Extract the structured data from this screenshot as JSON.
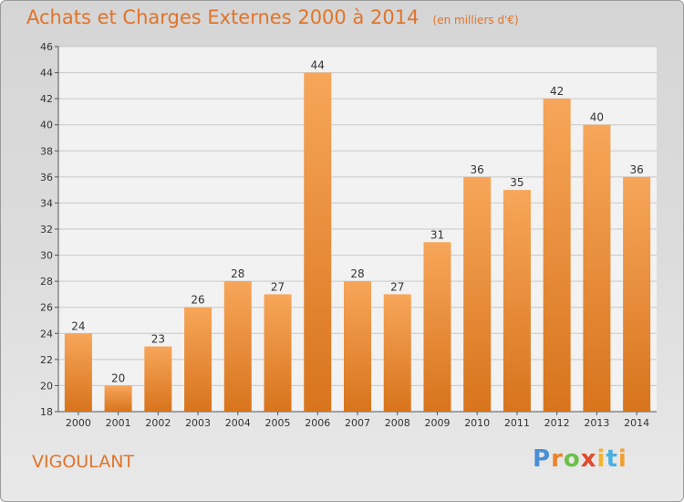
{
  "title": "Achats et Charges Externes 2000 à 2014",
  "subtitle": "(en milliers d'€)",
  "commune": "VIGOULANT",
  "logo": {
    "text": "Proxiti",
    "letter_colors": [
      "#4a8fd6",
      "#e8832d",
      "#6cc04a",
      "#e04a2a",
      "#f2b530",
      "#4ab0e0",
      "#f0a030"
    ]
  },
  "colors": {
    "accent": "#e0742a",
    "bar_top": "#f7a65a",
    "bar_bottom": "#d8741c",
    "grid": "#c8c8c8"
  },
  "chart_data": {
    "type": "bar",
    "categories": [
      "2000",
      "2001",
      "2002",
      "2003",
      "2004",
      "2005",
      "2006",
      "2007",
      "2008",
      "2009",
      "2010",
      "2011",
      "2012",
      "2013",
      "2014"
    ],
    "values": [
      24,
      20,
      23,
      26,
      28,
      27,
      44,
      28,
      27,
      31,
      36,
      35,
      42,
      40,
      36
    ],
    "ylim": [
      18,
      46
    ],
    "yticks": [
      18,
      20,
      22,
      24,
      26,
      28,
      30,
      32,
      34,
      36,
      38,
      40,
      42,
      44,
      46
    ],
    "grid": true,
    "data_labels": true
  }
}
